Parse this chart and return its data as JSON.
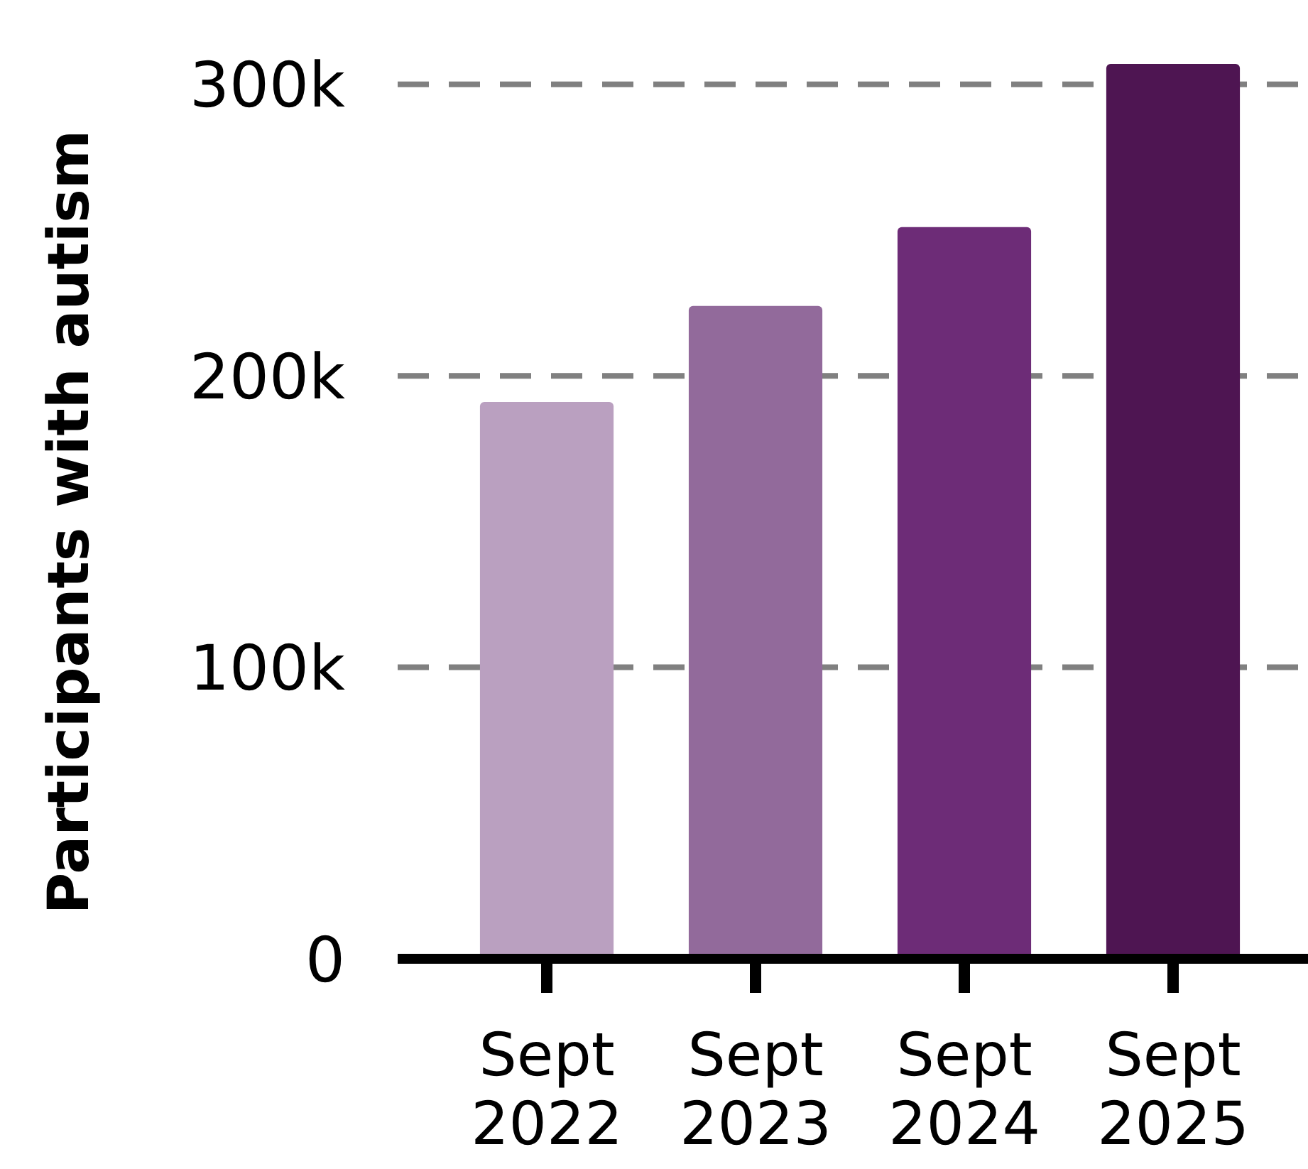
{
  "chart_data": {
    "type": "bar",
    "ylabel": "Participants with autism",
    "categories": [
      "Sept 2022",
      "Sept 2023",
      "Sept 2024",
      "Sept 2025"
    ],
    "values": [
      191000,
      224000,
      251000,
      307000
    ],
    "colors": [
      "#baa0c0",
      "#926a9b",
      "#6d2c77",
      "#4e1552"
    ],
    "yticks": [
      {
        "value": 0,
        "label": "0"
      },
      {
        "value": 100000,
        "label": "100k"
      },
      {
        "value": 200000,
        "label": "200k"
      },
      {
        "value": 300000,
        "label": "300k"
      }
    ],
    "ylim": [
      0,
      307000
    ],
    "grid": "y"
  }
}
